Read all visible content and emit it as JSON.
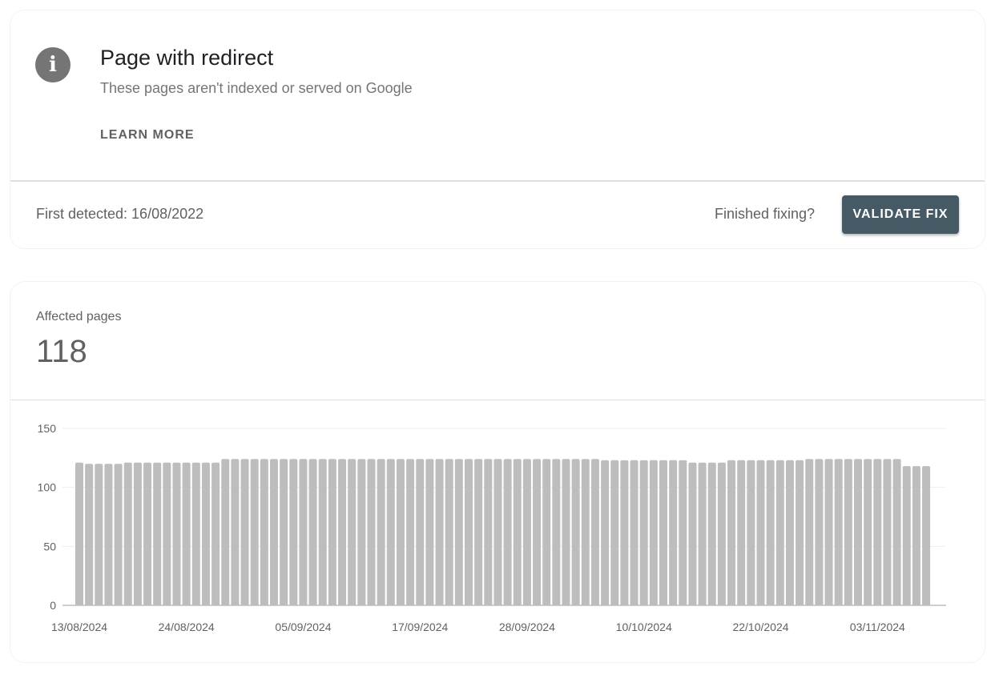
{
  "issue": {
    "icon": "info-icon",
    "title": "Page with redirect",
    "subtitle": "These pages aren't indexed or served on Google",
    "learn_more": "LEARN MORE"
  },
  "validation": {
    "first_detected": "First detected: 16/08/2022",
    "finished_prompt": "Finished fixing?",
    "validate_button": "VALIDATE FIX",
    "button_color": "#455a64"
  },
  "summary": {
    "label": "Affected pages",
    "value": "118"
  },
  "chart_data": {
    "type": "bar",
    "bar_color": "#bdbdbd",
    "ylim": [
      0,
      150
    ],
    "yticks": [
      "0",
      "50",
      "100",
      "150"
    ],
    "grid": true,
    "xtick_labels": [
      "13/08/2024",
      "24/08/2024",
      "05/09/2024",
      "17/09/2024",
      "28/09/2024",
      "10/10/2024",
      "22/10/2024",
      "03/11/2024"
    ],
    "xtick_index": [
      0,
      11,
      23,
      35,
      46,
      58,
      70,
      82
    ],
    "start_date": "13/08/2024",
    "values": [
      121,
      120,
      120,
      120,
      120,
      121,
      121,
      121,
      121,
      121,
      121,
      121,
      121,
      121,
      121,
      124,
      124,
      124,
      124,
      124,
      124,
      124,
      124,
      124,
      124,
      124,
      124,
      124,
      124,
      124,
      124,
      124,
      124,
      124,
      124,
      124,
      124,
      124,
      124,
      124,
      124,
      124,
      124,
      124,
      124,
      124,
      124,
      124,
      124,
      124,
      124,
      124,
      124,
      124,
      123,
      123,
      123,
      123,
      123,
      123,
      123,
      123,
      123,
      121,
      121,
      121,
      121,
      123,
      123,
      123,
      123,
      123,
      123,
      123,
      123,
      124,
      124,
      124,
      124,
      124,
      124,
      124,
      124,
      124,
      124,
      118,
      118,
      118
    ]
  }
}
